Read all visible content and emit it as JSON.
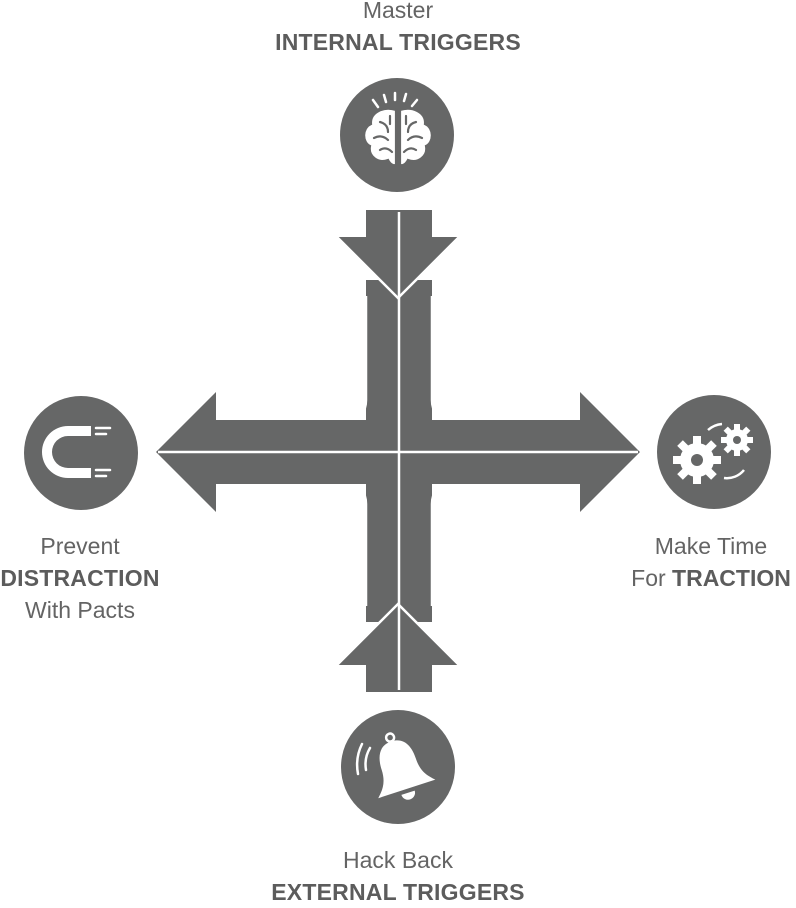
{
  "colors": {
    "shape": "#666767",
    "line": "#ffffff",
    "text": "#646464"
  },
  "top": {
    "line1": "Master",
    "line2": "INTERNAL TRIGGERS",
    "icon": "brain-icon"
  },
  "left": {
    "line1": "Prevent",
    "line2": "DISTRACTION",
    "line3": "With Pacts",
    "icon": "magnet-icon"
  },
  "right": {
    "line1": "Make Time",
    "line2_prefix": "For ",
    "line2_bold": "TRACTION",
    "icon": "gears-icon"
  },
  "bottom": {
    "line1": "Hack Back",
    "line2": "EXTERNAL TRIGGERS",
    "icon": "bell-icon"
  }
}
